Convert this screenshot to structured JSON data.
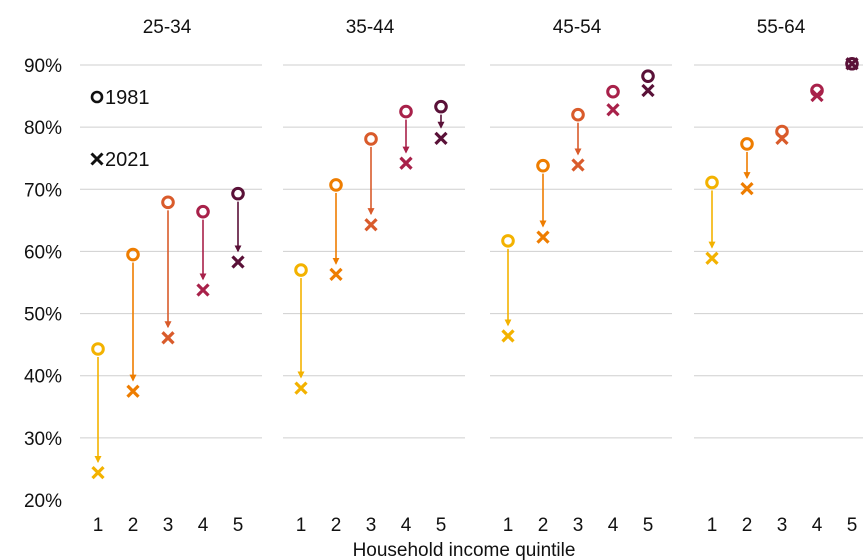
{
  "chart_data": {
    "type": "scatter",
    "xlabel": "Household income quintile",
    "ylim": [
      20,
      90
    ],
    "y_ticks": [
      20,
      30,
      40,
      50,
      60,
      70,
      80,
      90
    ],
    "y_tick_labels": [
      "20%",
      "30%",
      "40%",
      "50%",
      "60%",
      "70%",
      "80%",
      "90%"
    ],
    "x_categories": [
      "1",
      "2",
      "3",
      "4",
      "5"
    ],
    "grid": "horizontal",
    "legend": {
      "placement": "top-left",
      "entries": [
        {
          "marker": "open-circle",
          "label": "1981"
        },
        {
          "marker": "cross",
          "label": "2021"
        }
      ]
    },
    "quintile_colors": [
      "#f3b200",
      "#ee7d00",
      "#d95b2b",
      "#a8214a",
      "#5a1138"
    ],
    "facets": [
      {
        "title": "25-34",
        "y1981": [
          44.3,
          59.5,
          67.9,
          66.4,
          69.3
        ],
        "y2021": [
          24.4,
          37.5,
          46.1,
          53.8,
          58.3
        ]
      },
      {
        "title": "35-44",
        "y1981": [
          57.0,
          70.7,
          78.1,
          82.5,
          83.3
        ],
        "y2021": [
          38.0,
          56.3,
          64.3,
          74.2,
          78.2
        ]
      },
      {
        "title": "45-54",
        "y1981": [
          61.7,
          73.8,
          82.0,
          85.7,
          88.2
        ],
        "y2021": [
          46.4,
          62.3,
          73.9,
          82.8,
          85.9
        ]
      },
      {
        "title": "55-64",
        "y1981": [
          71.1,
          77.3,
          79.3,
          85.9,
          90.2
        ],
        "y2021": [
          58.9,
          70.1,
          78.2,
          85.1,
          90.2
        ]
      }
    ]
  }
}
